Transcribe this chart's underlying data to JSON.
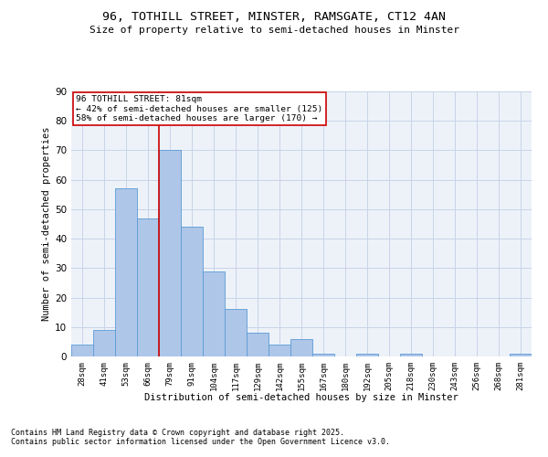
{
  "title1": "96, TOTHILL STREET, MINSTER, RAMSGATE, CT12 4AN",
  "title2": "Size of property relative to semi-detached houses in Minster",
  "xlabel": "Distribution of semi-detached houses by size in Minster",
  "ylabel": "Number of semi-detached properties",
  "bar_labels": [
    "28sqm",
    "41sqm",
    "53sqm",
    "66sqm",
    "79sqm",
    "91sqm",
    "104sqm",
    "117sqm",
    "129sqm",
    "142sqm",
    "155sqm",
    "167sqm",
    "180sqm",
    "192sqm",
    "205sqm",
    "218sqm",
    "230sqm",
    "243sqm",
    "256sqm",
    "268sqm",
    "281sqm"
  ],
  "bar_values": [
    4,
    9,
    57,
    47,
    70,
    44,
    29,
    16,
    8,
    4,
    6,
    1,
    0,
    1,
    0,
    1,
    0,
    0,
    0,
    0,
    1
  ],
  "bar_color": "#aec6e8",
  "bar_edge_color": "#5b9bd5",
  "vline_x": 3.5,
  "vline_color": "#cc0000",
  "annotation_text": "96 TOTHILL STREET: 81sqm\n← 42% of semi-detached houses are smaller (125)\n58% of semi-detached houses are larger (170) →",
  "grid_color": "#c8d4e8",
  "background_color": "#edf2f9",
  "ylim": [
    0,
    90
  ],
  "yticks": [
    0,
    10,
    20,
    30,
    40,
    50,
    60,
    70,
    80,
    90
  ],
  "footnote1": "Contains HM Land Registry data © Crown copyright and database right 2025.",
  "footnote2": "Contains public sector information licensed under the Open Government Licence v3.0."
}
